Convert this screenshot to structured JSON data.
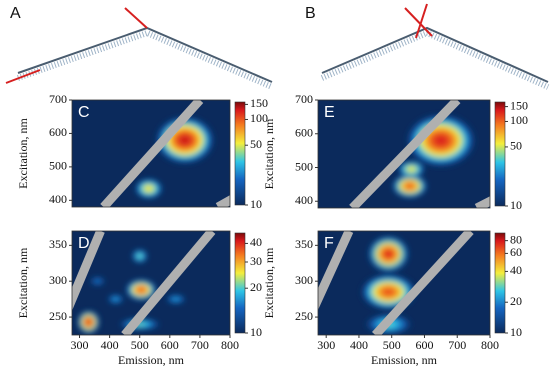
{
  "panel_labels": [
    "A",
    "B"
  ],
  "chart_data": [
    {
      "type": "heatmap",
      "title": "C",
      "y_label": "Excitation, nm",
      "xlim": [
        275,
        800
      ],
      "ylim": [
        380,
        700
      ],
      "yticks": [
        400,
        500,
        600,
        700
      ],
      "colorbar": {
        "scale": "log",
        "clim": [
          10,
          160
        ],
        "ticks": [
          10,
          50,
          100,
          150
        ]
      },
      "peaks": [
        {
          "x": 650,
          "y": 580,
          "value": 140,
          "width": 150,
          "height": 110
        },
        {
          "x": 530,
          "y": 435,
          "value": 60,
          "width": 90,
          "height": 60
        }
      ]
    },
    {
      "type": "heatmap",
      "title": "D",
      "x_label": "Emission, nm",
      "y_label": "Excitation, nm",
      "xlim": [
        275,
        800
      ],
      "ylim": [
        225,
        370
      ],
      "xticks": [
        300,
        400,
        500,
        600,
        700,
        800
      ],
      "yticks": [
        250,
        300,
        350
      ],
      "colorbar": {
        "scale": "log",
        "clim": [
          10,
          47
        ],
        "ticks": [
          10,
          20,
          30,
          40
        ]
      },
      "peaks": [
        {
          "x": 330,
          "y": 243,
          "value": 42,
          "width": 80,
          "height": 35
        },
        {
          "x": 505,
          "y": 288,
          "value": 38,
          "width": 120,
          "height": 35
        },
        {
          "x": 500,
          "y": 335,
          "value": 22,
          "width": 80,
          "height": 30
        },
        {
          "x": 420,
          "y": 275,
          "value": 18,
          "width": 100,
          "height": 25
        },
        {
          "x": 620,
          "y": 275,
          "value": 18,
          "width": 120,
          "height": 25
        },
        {
          "x": 500,
          "y": 240,
          "value": 22,
          "width": 200,
          "height": 25
        },
        {
          "x": 360,
          "y": 300,
          "value": 16,
          "width": 100,
          "height": 25
        }
      ]
    },
    {
      "type": "heatmap",
      "title": "E",
      "y_label": "Excitation, nm",
      "xlim": [
        275,
        800
      ],
      "ylim": [
        380,
        700
      ],
      "yticks": [
        400,
        500,
        600,
        700
      ],
      "colorbar": {
        "scale": "log",
        "clim": [
          10,
          170
        ],
        "ticks": [
          10,
          50,
          100,
          150
        ]
      },
      "peaks": [
        {
          "x": 650,
          "y": 580,
          "value": 140,
          "width": 160,
          "height": 120
        },
        {
          "x": 555,
          "y": 445,
          "value": 110,
          "width": 90,
          "height": 60
        },
        {
          "x": 560,
          "y": 495,
          "value": 60,
          "width": 80,
          "height": 50
        }
      ]
    },
    {
      "type": "heatmap",
      "title": "F",
      "x_label": "Emission, nm",
      "y_label": "Excitation, nm",
      "xlim": [
        275,
        800
      ],
      "ylim": [
        225,
        370
      ],
      "xticks": [
        300,
        400,
        500,
        600,
        700,
        800
      ],
      "yticks": [
        250,
        300,
        350
      ],
      "colorbar": {
        "scale": "log",
        "clim": [
          10,
          95
        ],
        "ticks": [
          10,
          20,
          40,
          60,
          80
        ]
      },
      "peaks": [
        {
          "x": 490,
          "y": 338,
          "value": 80,
          "width": 110,
          "height": 45
        },
        {
          "x": 490,
          "y": 285,
          "value": 70,
          "width": 150,
          "height": 45
        },
        {
          "x": 490,
          "y": 240,
          "value": 30,
          "width": 170,
          "height": 35
        }
      ]
    }
  ]
}
